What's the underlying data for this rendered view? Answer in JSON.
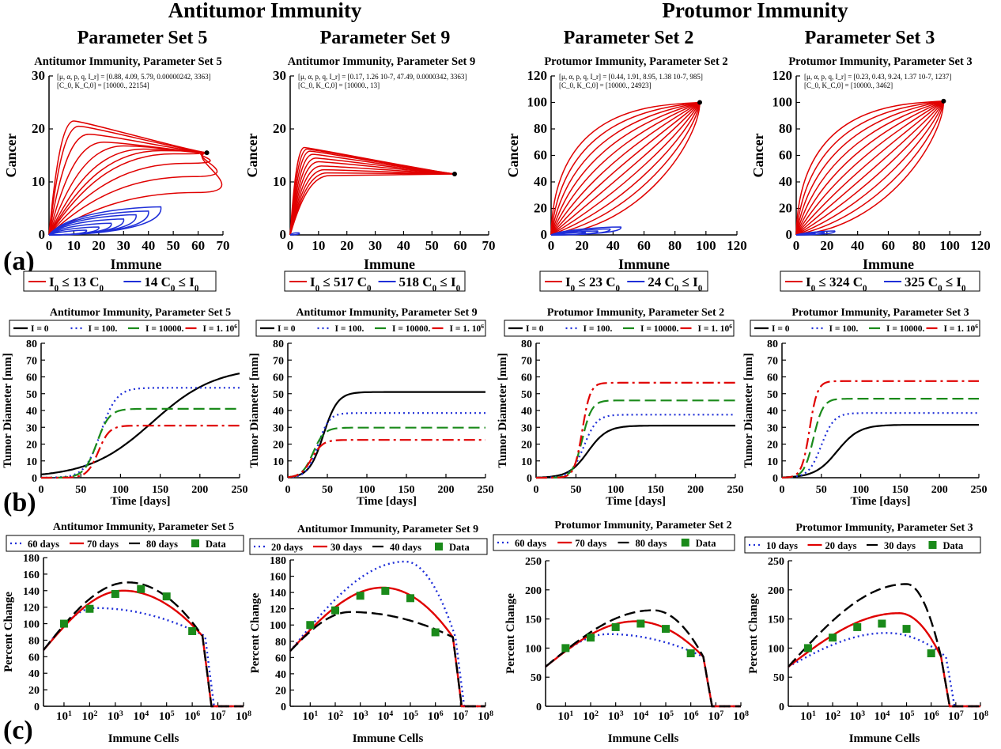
{
  "header": {
    "left_group": "Antitumor Immunity",
    "right_group": "Protumor Immunity",
    "set_titles": [
      "Parameter Set 5",
      "Parameter Set 9",
      "Parameter Set 2",
      "Parameter Set 3"
    ]
  },
  "row_labels": [
    "(a)",
    "(b)",
    "(c)"
  ],
  "chart_data": [
    {
      "type": "line",
      "title": "Antitumor Immunity, Parameter Set 5",
      "params": "[μ, α, p, q, I_r] = [0.88, 4.09, 5.79, 0.00000242, 3363]",
      "init": "[C_0, K_C,0] = [10000., 22154]",
      "xlabel": "Immune",
      "ylabel": "Cancer",
      "xlim": [
        0,
        70
      ],
      "ylim": [
        0,
        30
      ],
      "xticks": [
        0,
        10,
        20,
        30,
        40,
        50,
        60,
        70
      ],
      "yticks": [
        0,
        10,
        20,
        30
      ],
      "end": [
        63.5,
        15.5
      ],
      "red_peaks": [
        [
          10,
          21.5
        ],
        [
          12,
          20.5
        ],
        [
          16,
          19
        ],
        [
          22,
          17.5
        ],
        [
          30,
          16.8
        ],
        [
          38,
          16.2
        ],
        [
          45,
          15.9
        ],
        [
          50,
          15.3
        ],
        [
          55,
          13.5
        ],
        [
          58,
          11
        ],
        [
          60,
          8
        ]
      ],
      "blue_peaks": [
        [
          45,
          5.3
        ],
        [
          40,
          4.5
        ],
        [
          35,
          3.8
        ],
        [
          30,
          3.0
        ],
        [
          25,
          2.2
        ],
        [
          20,
          1.5
        ],
        [
          15,
          0.9
        ]
      ],
      "legend": [
        "I_0 ≤ 13 C_0",
        "14 C_0 ≤ I_0"
      ]
    },
    {
      "type": "line",
      "title": "Antitumor Immunity, Parameter Set 9",
      "params": "[μ, α, p, q, I_r] = [0.17, 1.26 10-7, 47.49, 0.0000342, 3363]",
      "init": "[C_0, K_C,0] = [10000., 13]",
      "xlabel": "Immune",
      "ylabel": "Cancer",
      "xlim": [
        0,
        70
      ],
      "ylim": [
        0,
        30
      ],
      "xticks": [
        0,
        10,
        20,
        30,
        40,
        50,
        60,
        70
      ],
      "yticks": [
        0,
        10,
        20,
        30
      ],
      "end": [
        58,
        11.5
      ],
      "red_peaks": [
        [
          5,
          16.5
        ],
        [
          6,
          16.2
        ],
        [
          7,
          15.8
        ],
        [
          8,
          15.2
        ],
        [
          9,
          14.5
        ],
        [
          10,
          13.8
        ],
        [
          11,
          13.0
        ],
        [
          12,
          12.3
        ],
        [
          13,
          11.7
        ],
        [
          14,
          11.2
        ]
      ],
      "blue_peaks": [
        [
          3,
          0.4
        ]
      ],
      "legend": [
        "I_0 ≤ 517 C_0",
        "518 C_0 ≤ I_0"
      ]
    },
    {
      "type": "line",
      "title": "Protumor Immunity, Parameter Set 2",
      "params": "[μ, α, p, q, I_r] = [0.44, 1.91, 8.95, 1.38 10-7, 985]",
      "init": "[C_0, K_C,0] = [10000., 24923]",
      "xlabel": "Immune",
      "ylabel": "Cancer",
      "xlim": [
        0,
        120
      ],
      "ylim": [
        0,
        120
      ],
      "xticks": [
        0,
        20,
        40,
        60,
        80,
        100,
        120
      ],
      "yticks": [
        0,
        20,
        40,
        60,
        80,
        100,
        120
      ],
      "end": [
        96,
        100
      ],
      "blue_peaks": [
        [
          45,
          6
        ],
        [
          38,
          4.5
        ],
        [
          30,
          3
        ],
        [
          22,
          2
        ]
      ],
      "legend": [
        "I_0 ≤ 23 C_0",
        "24 C_0 ≤ I_0"
      ]
    },
    {
      "type": "line",
      "title": "Protumor Immunity, Parameter Set 3",
      "params": "[μ, α, p, q, I_r] = [0.23, 0.43, 9.24, 1.37 10-7, 1237]",
      "init": "[C_0, K_C,0] = [10000., 3462]",
      "xlabel": "Immune",
      "ylabel": "Cancer",
      "xlim": [
        0,
        120
      ],
      "ylim": [
        0,
        120
      ],
      "xticks": [
        0,
        20,
        40,
        60,
        80,
        100,
        120
      ],
      "yticks": [
        0,
        20,
        40,
        60,
        80,
        100,
        120
      ],
      "end": [
        96,
        101
      ],
      "blue_peaks": [
        [
          25,
          3
        ],
        [
          18,
          2
        ],
        [
          12,
          1.2
        ]
      ],
      "legend": [
        "I_0 ≤ 324 C_0",
        "325 C_0 ≤ I_0"
      ]
    },
    {
      "type": "line",
      "title": "Antitumor Immunity, Parameter Set 5",
      "xlabel": "Time [days]",
      "ylabel": "Tumor Diameter [mm]",
      "xlim": [
        0,
        250
      ],
      "ylim": [
        0,
        80
      ],
      "xticks": [
        0,
        50,
        100,
        150,
        200,
        250
      ],
      "yticks": [
        0,
        10,
        20,
        30,
        40,
        50,
        60,
        70,
        80
      ],
      "legend": [
        "I = 0",
        "I = 100.",
        "I = 10000.",
        "I = 1. 10^6"
      ],
      "series": [
        {
          "name": "I = 0",
          "color": "#000000",
          "style": "solid",
          "final": 66,
          "midpoint": 140,
          "scale": 40
        },
        {
          "name": "I = 100.",
          "color": "#1f2fd8",
          "style": "dotted",
          "final": 53.5,
          "midpoint": 75,
          "scale": 10
        },
        {
          "name": "I = 10000.",
          "color": "#1a8a1a",
          "style": "dashed",
          "final": 41,
          "midpoint": 70,
          "scale": 8
        },
        {
          "name": "I = 1. 10^6",
          "color": "#e00000",
          "style": "dashdot",
          "final": 31,
          "midpoint": 72,
          "scale": 7
        }
      ]
    },
    {
      "type": "line",
      "title": "Antitumor Immunity, Parameter Set 9",
      "xlabel": "Time [days]",
      "ylabel": "Tumor Diameter [mm]",
      "xlim": [
        0,
        250
      ],
      "ylim": [
        0,
        80
      ],
      "xticks": [
        0,
        50,
        100,
        150,
        200,
        250
      ],
      "yticks": [
        0,
        10,
        20,
        30,
        40,
        50,
        60,
        70,
        80
      ],
      "legend": [
        "I = 0",
        "I = 100.",
        "I = 10000.",
        "I = 1. 10^6"
      ],
      "series": [
        {
          "name": "I = 0",
          "color": "#000000",
          "style": "solid",
          "final": 51,
          "midpoint": 45,
          "scale": 9
        },
        {
          "name": "I = 100.",
          "color": "#1f2fd8",
          "style": "dotted",
          "final": 38.5,
          "midpoint": 38,
          "scale": 7
        },
        {
          "name": "I = 10000.",
          "color": "#1a8a1a",
          "style": "dashed",
          "final": 29.8,
          "midpoint": 32,
          "scale": 7
        },
        {
          "name": "I = 1. 10^6",
          "color": "#e00000",
          "style": "dashdot",
          "final": 22.5,
          "midpoint": 30,
          "scale": 7
        }
      ]
    },
    {
      "type": "line",
      "title": "Protumor Immunity, Parameter Set 2",
      "xlabel": "Time [days]",
      "ylabel": "Tumor Diameter [mm]",
      "xlim": [
        0,
        250
      ],
      "ylim": [
        0,
        80
      ],
      "xticks": [
        0,
        50,
        100,
        150,
        200,
        250
      ],
      "yticks": [
        0,
        10,
        20,
        30,
        40,
        50,
        60,
        70,
        80
      ],
      "legend": [
        "I = 0",
        "I = 100.",
        "I = 10000.",
        "I = 1. 10^6"
      ],
      "series": [
        {
          "name": "I = 0",
          "color": "#000000",
          "style": "solid",
          "final": 31,
          "midpoint": 65,
          "scale": 12
        },
        {
          "name": "I = 100.",
          "color": "#1f2fd8",
          "style": "dotted",
          "final": 37.5,
          "midpoint": 60,
          "scale": 8
        },
        {
          "name": "I = 10000.",
          "color": "#1a8a1a",
          "style": "dashed",
          "final": 46,
          "midpoint": 58,
          "scale": 6
        },
        {
          "name": "I = 1. 10^6",
          "color": "#e00000",
          "style": "dashdot",
          "final": 56.5,
          "midpoint": 58,
          "scale": 5
        }
      ]
    },
    {
      "type": "line",
      "title": "Protumor Immunity, Parameter Set 3",
      "xlabel": "Time [days]",
      "ylabel": "Tumor Diameter [mm]",
      "xlim": [
        0,
        250
      ],
      "ylim": [
        0,
        80
      ],
      "xticks": [
        0,
        50,
        100,
        150,
        200,
        250
      ],
      "yticks": [
        0,
        10,
        20,
        30,
        40,
        50,
        60,
        70,
        80
      ],
      "legend": [
        "I = 0",
        "I = 100.",
        "I = 10000.",
        "I = 1. 10^6"
      ],
      "series": [
        {
          "name": "I = 0",
          "color": "#000000",
          "style": "solid",
          "final": 31.5,
          "midpoint": 70,
          "scale": 14
        },
        {
          "name": "I = 100.",
          "color": "#1f2fd8",
          "style": "dotted",
          "final": 38.5,
          "midpoint": 50,
          "scale": 8
        },
        {
          "name": "I = 10000.",
          "color": "#1a8a1a",
          "style": "dashed",
          "final": 47,
          "midpoint": 40,
          "scale": 6
        },
        {
          "name": "I = 1. 10^6",
          "color": "#e00000",
          "style": "dashdot",
          "final": 57.5,
          "midpoint": 35,
          "scale": 5
        }
      ]
    },
    {
      "type": "line",
      "title": "Antitumor Immunity, Parameter Set 5",
      "xlabel": "Immune Cells",
      "ylabel": "Percent Change",
      "xscale": "log",
      "xlim_exp": [
        0.2,
        8
      ],
      "ylim": [
        0,
        180
      ],
      "yticks": [
        0,
        20,
        40,
        60,
        80,
        100,
        120,
        140,
        160,
        180
      ],
      "legend": [
        "60 days",
        "70 days",
        "80 days",
        "Data"
      ],
      "series": [
        {
          "name": "60 days",
          "color": "#1f2fd8",
          "style": "dotted",
          "peak": 119,
          "peak_exp": 2.2,
          "collapse_exp": 6.5
        },
        {
          "name": "70 days",
          "color": "#e00000",
          "style": "solid",
          "peak": 140,
          "peak_exp": 3.3,
          "collapse_exp": 6.4
        },
        {
          "name": "80 days",
          "color": "#000000",
          "style": "dashed",
          "peak": 150,
          "peak_exp": 3.5,
          "collapse_exp": 6.4
        }
      ],
      "data_points": [
        [
          1,
          100
        ],
        [
          2,
          118
        ],
        [
          3,
          136
        ],
        [
          4,
          142
        ],
        [
          5,
          133
        ],
        [
          6,
          91
        ]
      ]
    },
    {
      "type": "line",
      "title": "Antitumor Immunity, Parameter Set 9",
      "xlabel": "Immune Cells",
      "ylabel": "Percent Change",
      "xscale": "log",
      "xlim_exp": [
        0.2,
        8
      ],
      "ylim": [
        0,
        180
      ],
      "yticks": [
        0,
        20,
        40,
        60,
        80,
        100,
        120,
        140,
        160,
        180
      ],
      "legend": [
        "20 days",
        "30 days",
        "40 days",
        "Data"
      ],
      "series": [
        {
          "name": "20 days",
          "color": "#1f2fd8",
          "style": "dotted",
          "peak": 178,
          "peak_exp": 4.8,
          "collapse_exp": 6.8
        },
        {
          "name": "30 days",
          "color": "#e00000",
          "style": "solid",
          "peak": 146,
          "peak_exp": 3.9,
          "collapse_exp": 6.7
        },
        {
          "name": "40 days",
          "color": "#000000",
          "style": "dashed",
          "peak": 116,
          "peak_exp": 2.6,
          "collapse_exp": 6.7
        }
      ],
      "data_points": [
        [
          1,
          100
        ],
        [
          2,
          118
        ],
        [
          3,
          136
        ],
        [
          4,
          142
        ],
        [
          5,
          133
        ],
        [
          6,
          91
        ]
      ]
    },
    {
      "type": "line",
      "title": "Protumor Immunity, Parameter Set 2",
      "xlabel": "Immune Cells",
      "ylabel": "Percent Change",
      "xscale": "log",
      "xlim_exp": [
        0.2,
        8
      ],
      "ylim": [
        0,
        250
      ],
      "yticks": [
        0,
        50,
        100,
        150,
        200,
        250
      ],
      "legend": [
        "60 days",
        "70 days",
        "80 days",
        "Data"
      ],
      "series": [
        {
          "name": "60 days",
          "color": "#1f2fd8",
          "style": "dotted",
          "peak": 124,
          "peak_exp": 2.7,
          "collapse_exp": 6.5
        },
        {
          "name": "70 days",
          "color": "#e00000",
          "style": "solid",
          "peak": 146,
          "peak_exp": 3.8,
          "collapse_exp": 6.5
        },
        {
          "name": "80 days",
          "color": "#000000",
          "style": "dashed",
          "peak": 165,
          "peak_exp": 4.5,
          "collapse_exp": 6.5
        }
      ],
      "data_points": [
        [
          1,
          100
        ],
        [
          2,
          118
        ],
        [
          3,
          136
        ],
        [
          4,
          142
        ],
        [
          5,
          133
        ],
        [
          6,
          91
        ]
      ]
    },
    {
      "type": "line",
      "title": "Protumor Immunity, Parameter Set 3",
      "xlabel": "Immune Cells",
      "ylabel": "Percent Change",
      "xscale": "log",
      "xlim_exp": [
        0.2,
        8
      ],
      "ylim": [
        0,
        250
      ],
      "yticks": [
        0,
        50,
        100,
        150,
        200,
        250
      ],
      "legend": [
        "10 days",
        "20 days",
        "30 days",
        "Data"
      ],
      "series": [
        {
          "name": "10 days",
          "color": "#1f2fd8",
          "style": "dotted",
          "peak": 126,
          "peak_exp": 4.2,
          "collapse_exp": 6.6
        },
        {
          "name": "20 days",
          "color": "#e00000",
          "style": "solid",
          "peak": 160,
          "peak_exp": 4.7,
          "collapse_exp": 6.4
        },
        {
          "name": "30 days",
          "color": "#000000",
          "style": "dashed",
          "peak": 210,
          "peak_exp": 5.0,
          "collapse_exp": 6.4
        }
      ],
      "data_points": [
        [
          1,
          100
        ],
        [
          2,
          118
        ],
        [
          3,
          136
        ],
        [
          4,
          142
        ],
        [
          5,
          133
        ],
        [
          6,
          91
        ]
      ]
    }
  ]
}
